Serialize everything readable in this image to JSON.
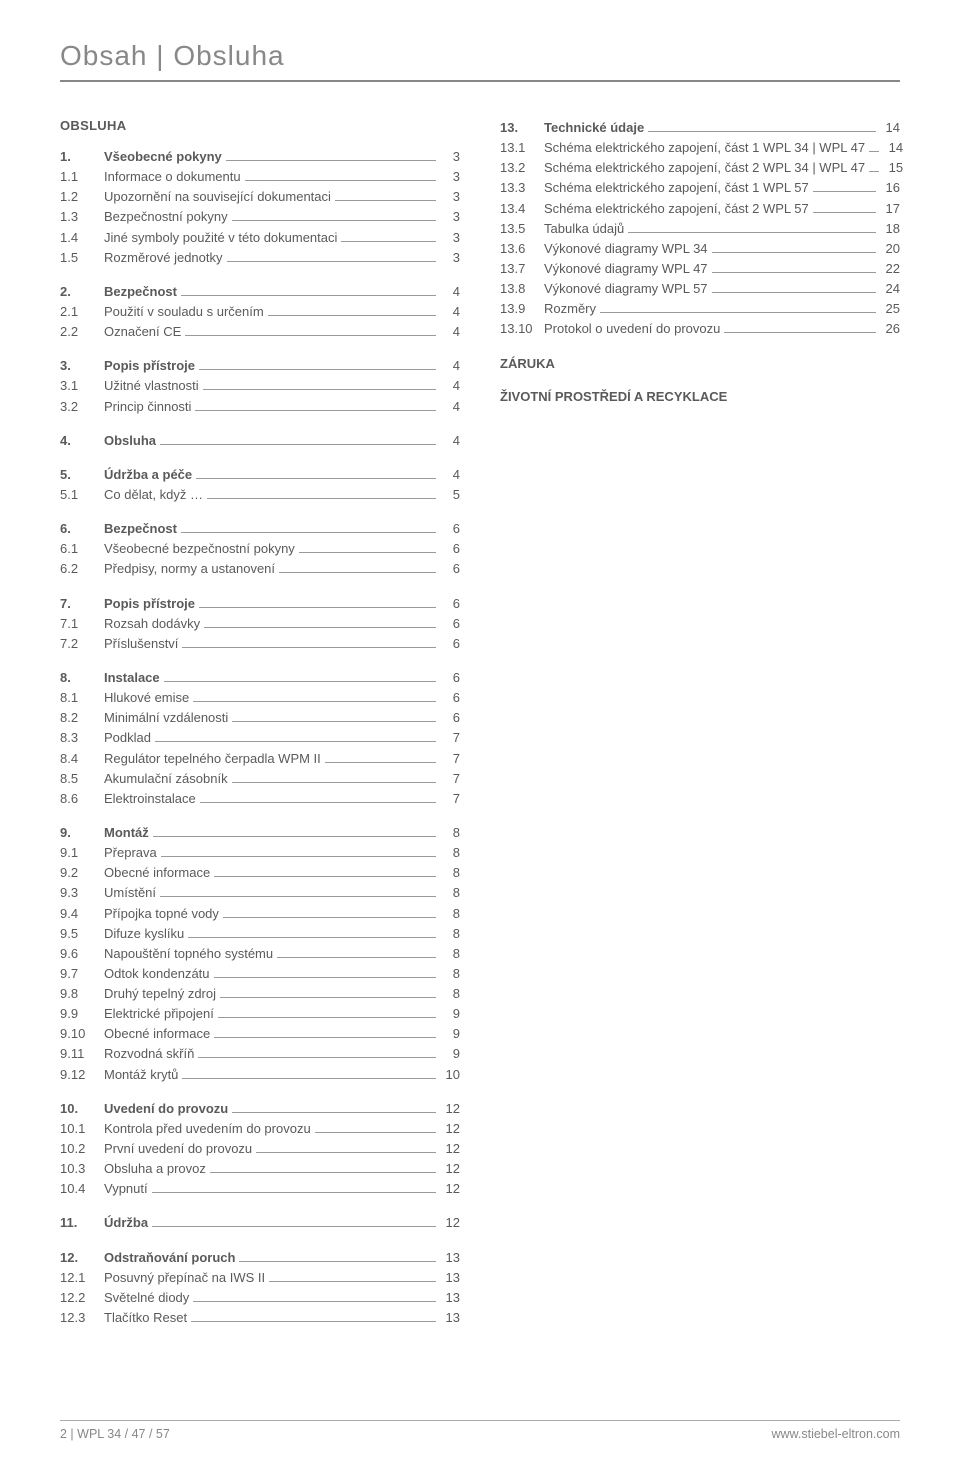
{
  "title": "Obsah | Obsluha",
  "left": {
    "heading": "OBSLUHA",
    "groups": [
      [
        {
          "num": "1.",
          "title": "Všeobecné pokyny",
          "page": "3",
          "bold": true
        },
        {
          "num": "1.1",
          "title": "Informace o dokumentu",
          "page": "3"
        },
        {
          "num": "1.2",
          "title": "Upozornění na související dokumentaci",
          "page": "3"
        },
        {
          "num": "1.3",
          "title": "Bezpečnostní pokyny",
          "page": "3"
        },
        {
          "num": "1.4",
          "title": "Jiné symboly použité v této dokumentaci",
          "page": "3"
        },
        {
          "num": "1.5",
          "title": "Rozměrové jednotky",
          "page": "3"
        }
      ],
      [
        {
          "num": "2.",
          "title": "Bezpečnost",
          "page": "4",
          "bold": true
        },
        {
          "num": "2.1",
          "title": "Použití v souladu s určením",
          "page": "4"
        },
        {
          "num": "2.2",
          "title": "Označení CE",
          "page": "4"
        }
      ],
      [
        {
          "num": "3.",
          "title": "Popis přístroje",
          "page": "4",
          "bold": true
        },
        {
          "num": "3.1",
          "title": "Užitné vlastnosti",
          "page": "4"
        },
        {
          "num": "3.2",
          "title": "Princip činnosti",
          "page": "4"
        }
      ],
      [
        {
          "num": "4.",
          "title": "Obsluha",
          "page": "4",
          "bold": true
        }
      ],
      [
        {
          "num": "5.",
          "title": "Údržba a péče",
          "page": "4",
          "bold": true
        },
        {
          "num": "5.1",
          "title": "Co dělat, když …",
          "page": "5"
        }
      ],
      [
        {
          "num": "6.",
          "title": "Bezpečnost",
          "page": "6",
          "bold": true
        },
        {
          "num": "6.1",
          "title": "Všeobecné bezpečnostní pokyny",
          "page": "6"
        },
        {
          "num": "6.2",
          "title": "Předpisy, normy a ustanovení",
          "page": "6"
        }
      ],
      [
        {
          "num": "7.",
          "title": "Popis přístroje",
          "page": "6",
          "bold": true
        },
        {
          "num": "7.1",
          "title": "Rozsah dodávky",
          "page": "6"
        },
        {
          "num": "7.2",
          "title": "Příslušenství",
          "page": "6"
        }
      ],
      [
        {
          "num": "8.",
          "title": "Instalace",
          "page": "6",
          "bold": true
        },
        {
          "num": "8.1",
          "title": "Hlukové emise",
          "page": "6"
        },
        {
          "num": "8.2",
          "title": "Minimální vzdálenosti",
          "page": "6"
        },
        {
          "num": "8.3",
          "title": "Podklad",
          "page": "7"
        },
        {
          "num": "8.4",
          "title": "Regulátor tepelného čerpadla WPM II",
          "page": "7"
        },
        {
          "num": "8.5",
          "title": "Akumulační zásobník",
          "page": "7"
        },
        {
          "num": "8.6",
          "title": "Elektroinstalace",
          "page": "7"
        }
      ],
      [
        {
          "num": "9.",
          "title": "Montáž",
          "page": "8",
          "bold": true
        },
        {
          "num": "9.1",
          "title": "Přeprava",
          "page": "8"
        },
        {
          "num": "9.2",
          "title": "Obecné informace",
          "page": "8"
        },
        {
          "num": "9.3",
          "title": "Umístění",
          "page": "8"
        },
        {
          "num": "9.4",
          "title": "Přípojka topné vody",
          "page": "8"
        },
        {
          "num": "9.5",
          "title": "Difuze kyslíku",
          "page": "8"
        },
        {
          "num": "9.6",
          "title": "Napouštění topného systému",
          "page": "8"
        },
        {
          "num": "9.7",
          "title": "Odtok kondenzátu",
          "page": "8"
        },
        {
          "num": "9.8",
          "title": "Druhý tepelný zdroj",
          "page": "8"
        },
        {
          "num": "9.9",
          "title": "Elektrické připojení",
          "page": "9"
        },
        {
          "num": "9.10",
          "title": "Obecné informace",
          "page": "9"
        },
        {
          "num": "9.11",
          "title": "Rozvodná skříň",
          "page": "9"
        },
        {
          "num": "9.12",
          "title": "Montáž krytů",
          "page": "10"
        }
      ],
      [
        {
          "num": "10.",
          "title": "Uvedení do provozu",
          "page": "12",
          "bold": true
        },
        {
          "num": "10.1",
          "title": "Kontrola před uvedením do provozu",
          "page": "12"
        },
        {
          "num": "10.2",
          "title": "První uvedení do provozu",
          "page": "12"
        },
        {
          "num": "10.3",
          "title": "Obsluha a provoz",
          "page": "12"
        },
        {
          "num": "10.4",
          "title": "Vypnutí",
          "page": "12"
        }
      ],
      [
        {
          "num": "11.",
          "title": "Údržba",
          "page": "12",
          "bold": true
        }
      ],
      [
        {
          "num": "12.",
          "title": "Odstraňování poruch",
          "page": "13",
          "bold": true
        },
        {
          "num": "12.1",
          "title": "Posuvný přepínač na IWS II",
          "page": "13"
        },
        {
          "num": "12.2",
          "title": "Světelné diody",
          "page": "13"
        },
        {
          "num": "12.3",
          "title": "Tlačítko Reset",
          "page": "13"
        }
      ]
    ]
  },
  "right": {
    "groups": [
      [
        {
          "num": "13.",
          "title": "Technické údaje",
          "page": "14",
          "bold": true
        },
        {
          "num": "13.1",
          "title": "Schéma elektrického zapojení, část 1 WPL 34 | WPL 47",
          "page": "14"
        },
        {
          "num": "13.2",
          "title": "Schéma elektrického zapojení, část 2 WPL 34 | WPL 47",
          "page": "15"
        },
        {
          "num": "13.3",
          "title": "Schéma elektrického zapojení, část 1 WPL 57",
          "page": "16"
        },
        {
          "num": "13.4",
          "title": "Schéma elektrického zapojení, část 2 WPL 57",
          "page": "17"
        },
        {
          "num": "13.5",
          "title": "Tabulka údajů",
          "page": "18"
        },
        {
          "num": "13.6",
          "title": "Výkonové diagramy WPL 34",
          "page": "20"
        },
        {
          "num": "13.7",
          "title": "Výkonové diagramy WPL 47",
          "page": "22"
        },
        {
          "num": "13.8",
          "title": "Výkonové diagramy WPL 57",
          "page": "24"
        },
        {
          "num": "13.9",
          "title": "Rozměry",
          "page": "25"
        },
        {
          "num": "13.10",
          "title": "Protokol o uvedení do provozu",
          "page": "26"
        }
      ]
    ],
    "subheadings": [
      "ZÁRUKA",
      "ŽIVOTNÍ PROSTŘEDÍ A RECYKLACE"
    ]
  },
  "footer": {
    "left": "2 | WPL 34 / 47 / 57",
    "right": "www.stiebel-eltron.com"
  }
}
